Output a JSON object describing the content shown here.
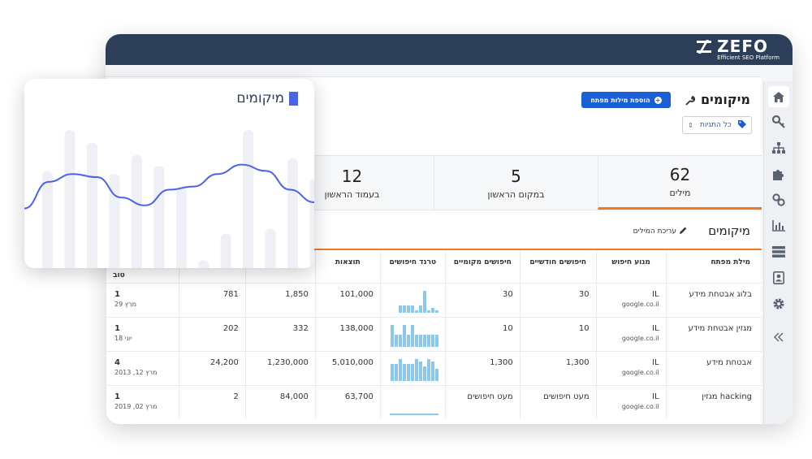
{
  "logo": {
    "name": "ZEFO",
    "tagline": "Efficient SEO Platform"
  },
  "header": {
    "title": "מיקומים",
    "add_button": "הוספת מילות מפתח",
    "tag_filter": "כל התגיות"
  },
  "stats": [
    {
      "value": "62",
      "label": "מילים"
    },
    {
      "value": "5",
      "label": "במקום הראשון"
    },
    {
      "value": "12",
      "label": "בעמוד הראשון"
    }
  ],
  "section": {
    "title": "מיקומים",
    "edit_link": "עריכת המילים"
  },
  "table": {
    "columns": [
      "מילת מפתח",
      "מנוע חיפוש",
      "חיפושים חודשיים",
      "חיפושים מקומיים",
      "טרנד חיפושים",
      "תוצאות",
      "",
      "",
      "טוב"
    ],
    "rows": [
      {
        "keyword": "בלוג אבטחת מידע",
        "engine": "IL",
        "domain": "google.co.il",
        "monthly": "30",
        "local": "30",
        "trend": [
          0.1,
          0.2,
          0.1,
          0.9,
          0.3,
          0.1,
          0.3,
          0.3,
          0.3,
          0.3
        ],
        "results": "101,000",
        "c1": "1,850",
        "c2": "781",
        "best_rank": "1",
        "best_date": "מרץ 29"
      },
      {
        "keyword": "מגזין אבטחת מידע",
        "engine": "IL",
        "domain": "google.co.il",
        "monthly": "10",
        "local": "10",
        "trend": [
          0.5,
          0.5,
          0.5,
          0.5,
          0.5,
          0.5,
          0.9,
          0.5,
          0.9,
          0.5,
          0.5,
          0.9
        ],
        "results": "138,000",
        "c1": "332",
        "c2": "202",
        "best_rank": "1",
        "best_date": "יוני 18"
      },
      {
        "keyword": "אבטחת מידע",
        "engine": "IL",
        "domain": "google.co.il",
        "monthly": "1,300",
        "local": "1,300",
        "trend": [
          0.5,
          0.8,
          0.9,
          0.6,
          0.8,
          0.9,
          0.7,
          0.7,
          0.7,
          0.9,
          0.7,
          0.7
        ],
        "results": "5,010,000",
        "c1": "1,230,000",
        "c2": "24,200",
        "best_rank": "4",
        "best_date": "מרץ 12, 2013"
      },
      {
        "keyword": "hacking מגזין",
        "engine": "IL",
        "domain": "google.co.il",
        "monthly": "מעט חיפושים",
        "local": "מעט חיפושים",
        "trend": [],
        "results": "63,700",
        "c1": "84,000",
        "c2": "2",
        "best_rank": "1",
        "best_date": "מרץ 02, 2019"
      }
    ]
  },
  "card": {
    "title": "מיקומים",
    "bar_levels": [
      0.62,
      0.88,
      0.8,
      0.6,
      0.72,
      0.65,
      0.52,
      0.05,
      0.22,
      0.88,
      0.25,
      0.7,
      0.57
    ],
    "line_levels": [
      0.38,
      0.55,
      0.6,
      0.58,
      0.45,
      0.4,
      0.5,
      0.52,
      0.6,
      0.66,
      0.62,
      0.5,
      0.42
    ]
  },
  "colors": {
    "topbar": "#2d3e58",
    "accent": "#1a5fd6",
    "orange": "#f07a23",
    "line": "#4a63e8",
    "spark": "#8cc8ec"
  },
  "icons": [
    "home-icon",
    "key-icon",
    "sitemap-icon",
    "puzzle-icon",
    "link-icon",
    "bar-chart-icon",
    "server-icon",
    "contact-card-icon",
    "gear-icon",
    "collapse-icon"
  ]
}
